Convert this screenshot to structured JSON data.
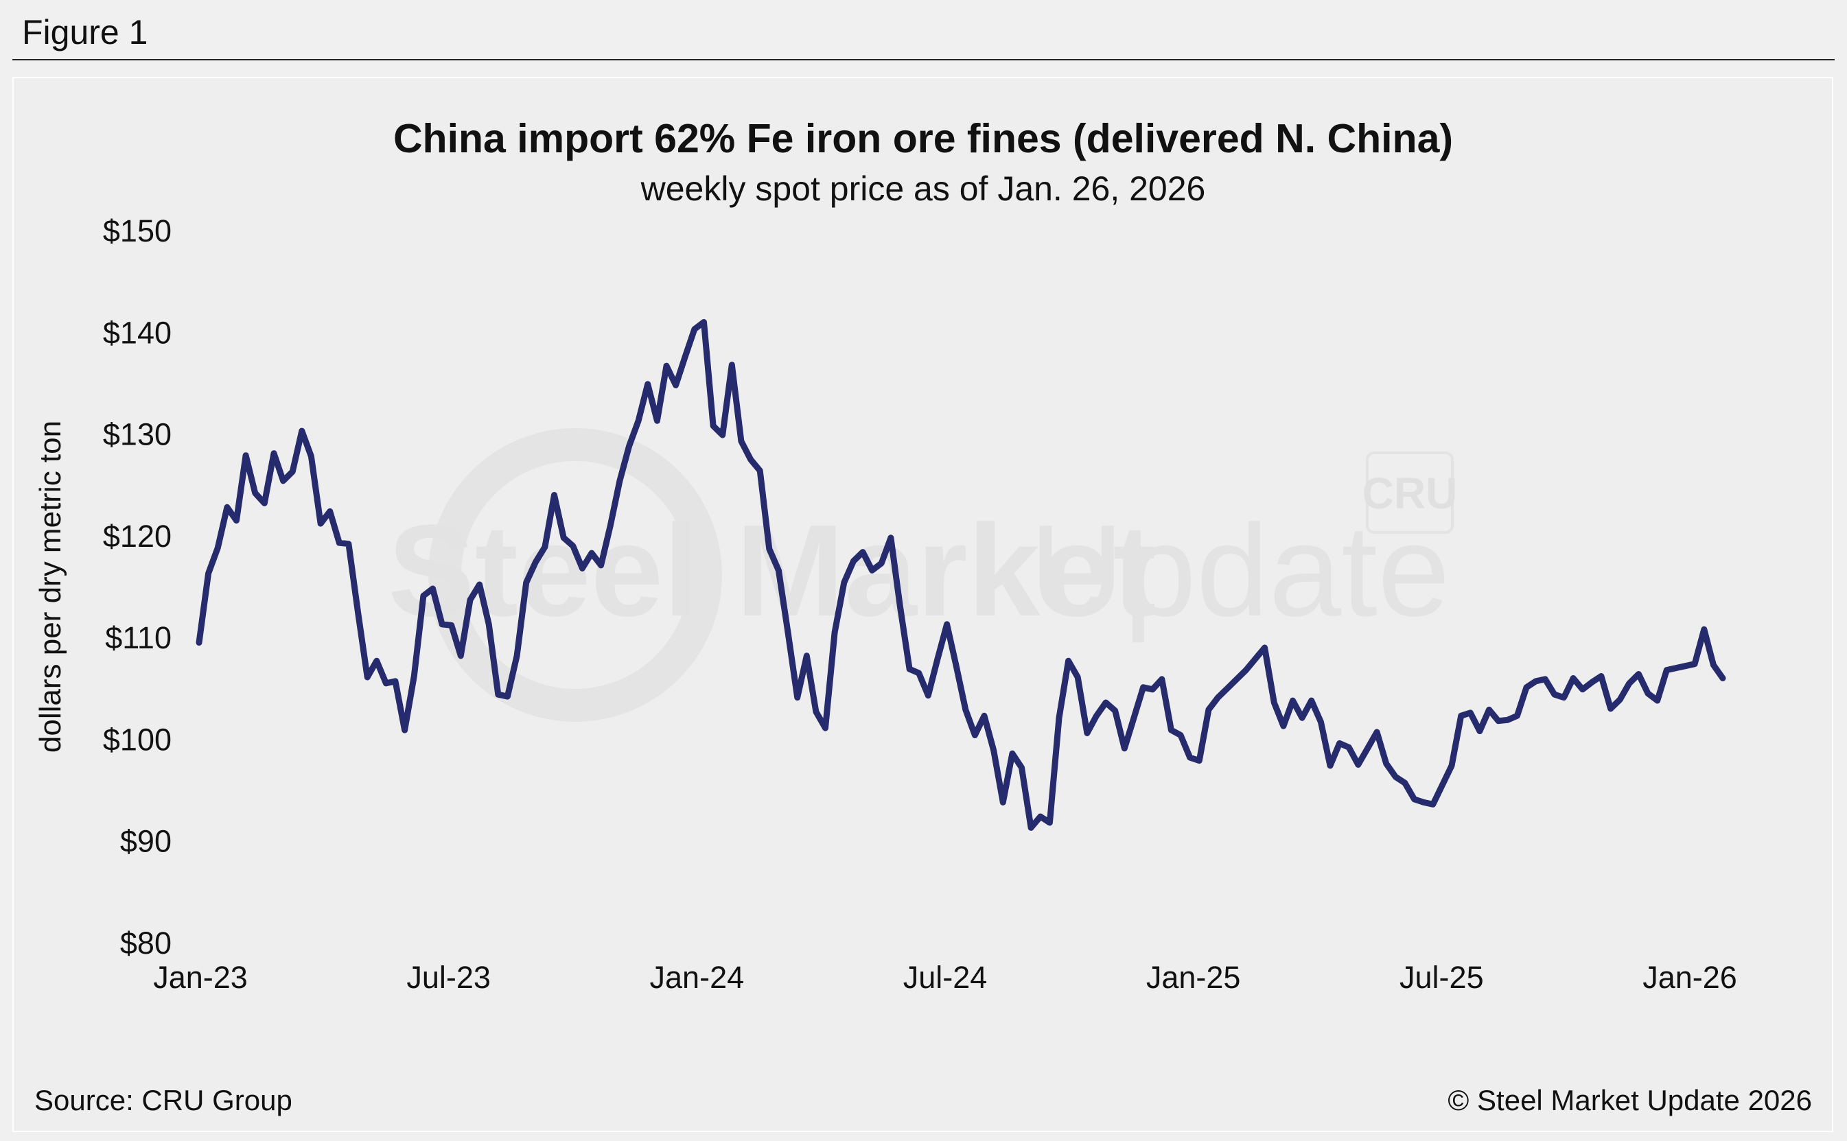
{
  "figure_label": "Figure 1",
  "watermark": {
    "brand_bold": "Steel Market",
    "brand_light": "Update",
    "logo": "CRU"
  },
  "source_text": "Source: CRU Group",
  "copyright_text": "© Steel Market Update 2026",
  "colors": {
    "line": "#252b6c",
    "background": "#eeeeee"
  },
  "chart_data": {
    "type": "line",
    "title": "China import 62% Fe iron ore fines (delivered N. China)",
    "subtitle": "weekly spot price as of Jan. 26, 2026",
    "ylabel": "dollars per dry metric ton",
    "xlabel": "",
    "ylim": [
      80,
      150
    ],
    "y_ticks": [
      150,
      140,
      130,
      120,
      110,
      100,
      90,
      80
    ],
    "y_tick_labels": [
      "$150",
      "$140",
      "$130",
      "$120",
      "$110",
      "$100",
      "$90",
      "$80"
    ],
    "x_tick_labels": [
      "Jan-23",
      "Jul-23",
      "Jan-24",
      "Jul-24",
      "Jan-25",
      "Jul-25",
      "Jan-26"
    ],
    "grid": false,
    "legend": "none",
    "series": [
      {
        "values": [
          109.5,
          116.3,
          118.8,
          122.8,
          121.5,
          127.9,
          124.2,
          123.2,
          128.1,
          125.4,
          126.3,
          130.3,
          127.8,
          121.2,
          122.4,
          119.3,
          119.2,
          112.5,
          106.1,
          107.7,
          105.5,
          105.7,
          100.9,
          106.2,
          114.1,
          114.8,
          111.3,
          111.2,
          108.2,
          113.7,
          115.2,
          111.3,
          104.4,
          104.2,
          108.2,
          115.4,
          117.4,
          118.9,
          124.0,
          119.8,
          119.0,
          116.8,
          118.3,
          117.1,
          121.0,
          125.4,
          128.8,
          131.3,
          134.9,
          131.3,
          136.7,
          134.8,
          137.6,
          140.3,
          141.0,
          130.8,
          129.9,
          136.8,
          129.3,
          127.5,
          126.4,
          118.7,
          116.6,
          110.5,
          104.1,
          108.2,
          102.7,
          101.1,
          110.5,
          115.4,
          117.5,
          118.4,
          116.6,
          117.3,
          119.8,
          113.0,
          106.9,
          106.5,
          104.3,
          107.9,
          111.3,
          107.2,
          102.9,
          100.4,
          102.3,
          98.9,
          93.8,
          98.6,
          97.2,
          91.3,
          92.4,
          91.8,
          102.1,
          107.7,
          106.1,
          100.6,
          102.3,
          103.6,
          102.8,
          99.1,
          102.1,
          105.1,
          104.9,
          105.9,
          100.9,
          100.4,
          98.2,
          97.9,
          102.9,
          104.1,
          105.0,
          105.9,
          106.8,
          107.9,
          109.0,
          103.6,
          101.3,
          103.8,
          102.1,
          103.8,
          101.7,
          97.4,
          99.6,
          99.2,
          97.5,
          99.1,
          100.7,
          97.6,
          96.3,
          95.7,
          94.1,
          93.8,
          93.6,
          95.5,
          97.4,
          102.3,
          102.6,
          100.8,
          102.9,
          101.8,
          101.9,
          102.3,
          105.1,
          105.7,
          105.9,
          104.4,
          104.1,
          106.0,
          104.9,
          105.6,
          106.2,
          103.0,
          103.9,
          105.5,
          106.4,
          104.5,
          103.8,
          106.8,
          107.0,
          107.2,
          107.4,
          110.8,
          107.3,
          106.0
        ]
      }
    ]
  }
}
